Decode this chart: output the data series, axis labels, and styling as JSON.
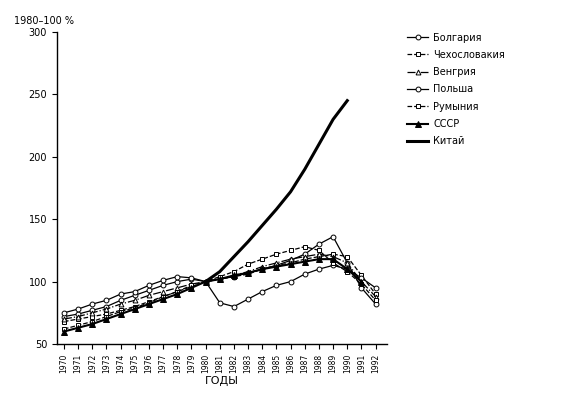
{
  "title_ylabel": "1980–100 %",
  "xlabel": "ГОДЫ",
  "years": [
    1970,
    1971,
    1972,
    1973,
    1974,
    1975,
    1976,
    1977,
    1978,
    1979,
    1980,
    1981,
    1982,
    1983,
    1984,
    1985,
    1986,
    1987,
    1988,
    1989,
    1990,
    1991,
    1992
  ],
  "ylim": [
    50,
    300
  ],
  "yticks": [
    50,
    100,
    150,
    200,
    250,
    300
  ],
  "series": [
    {
      "name": "Болгария",
      "marker": "o",
      "markersize": 3.5,
      "markerfacecolor": "white",
      "color": "black",
      "linewidth": 0.9,
      "linestyle": "-",
      "data": [
        72,
        74,
        77,
        80,
        85,
        89,
        93,
        97,
        100,
        102,
        100,
        102,
        104,
        107,
        110,
        113,
        117,
        122,
        130,
        136,
        115,
        95,
        82
      ]
    },
    {
      "name": "Чехословакия",
      "marker": "s",
      "markersize": 3.5,
      "markerfacecolor": "white",
      "color": "black",
      "linewidth": 0.9,
      "linestyle": "--",
      "data": [
        68,
        70,
        72,
        74,
        77,
        80,
        84,
        88,
        92,
        96,
        100,
        102,
        104,
        106,
        110,
        113,
        115,
        118,
        120,
        122,
        120,
        105,
        90
      ]
    },
    {
      "name": "Венгрия",
      "marker": "^",
      "markersize": 3.5,
      "markerfacecolor": "white",
      "color": "black",
      "linewidth": 0.9,
      "linestyle": "-.",
      "data": [
        70,
        72,
        75,
        78,
        82,
        85,
        89,
        92,
        95,
        98,
        100,
        102,
        105,
        108,
        112,
        115,
        118,
        120,
        122,
        120,
        115,
        100,
        88
      ]
    },
    {
      "name": "Польша",
      "marker": "o",
      "markersize": 3.5,
      "markerfacecolor": "white",
      "color": "black",
      "linewidth": 0.9,
      "linestyle": "-",
      "data": [
        75,
        78,
        82,
        85,
        90,
        92,
        97,
        101,
        104,
        103,
        100,
        83,
        80,
        86,
        92,
        97,
        100,
        106,
        110,
        113,
        110,
        103,
        95
      ]
    },
    {
      "name": "Румыния",
      "marker": "s",
      "markersize": 3.5,
      "markerfacecolor": "white",
      "color": "black",
      "linewidth": 0.9,
      "linestyle": "--",
      "data": [
        62,
        65,
        68,
        72,
        76,
        79,
        83,
        88,
        92,
        97,
        100,
        104,
        108,
        114,
        118,
        122,
        125,
        128,
        125,
        115,
        108,
        98,
        85
      ]
    },
    {
      "name": "СССР",
      "marker": "^",
      "markersize": 4.5,
      "markerfacecolor": "black",
      "color": "black",
      "linewidth": 1.5,
      "linestyle": "-",
      "data": [
        60,
        63,
        66,
        70,
        74,
        78,
        82,
        86,
        90,
        95,
        100,
        102,
        105,
        107,
        110,
        112,
        114,
        116,
        118,
        118,
        110,
        100,
        null
      ]
    },
    {
      "name": "Китай",
      "marker": null,
      "markersize": 0,
      "markerfacecolor": "black",
      "color": "black",
      "linewidth": 2.2,
      "linestyle": "-",
      "data": [
        null,
        null,
        null,
        null,
        null,
        null,
        null,
        null,
        null,
        null,
        100,
        108,
        120,
        132,
        145,
        158,
        172,
        190,
        210,
        230,
        245,
        null,
        null
      ]
    }
  ]
}
